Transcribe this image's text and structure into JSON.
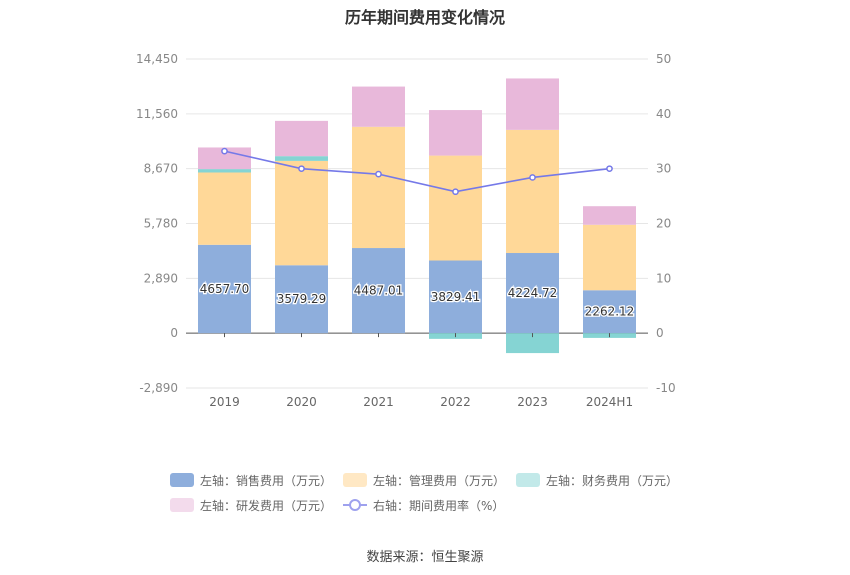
{
  "title": "历年期间费用变化情况",
  "source": "数据来源：恒生聚源",
  "chart_data": {
    "type": "bar",
    "stacked": true,
    "categories": [
      "2019",
      "2020",
      "2021",
      "2022",
      "2023",
      "2024H1"
    ],
    "left_axis": {
      "min": -2890,
      "max": 14450,
      "ticks": [
        "14,450",
        "11,560",
        "8,670",
        "5,780",
        "2,890",
        "0",
        "-2,890"
      ]
    },
    "right_axis": {
      "min": -10,
      "max": 50,
      "ticks": [
        "50",
        "40",
        "30",
        "20",
        "10",
        "0",
        "-10"
      ]
    },
    "series": [
      {
        "name": "左轴：销售费用（万元）",
        "color": "#8eaedc",
        "values": [
          4657.7,
          3579.29,
          4487.01,
          3829.41,
          4224.72,
          2262.12
        ],
        "labels": [
          "4657.70",
          "3579.29",
          "4487.01",
          "3829.41",
          "4224.72",
          "2262.12"
        ]
      },
      {
        "name": "左轴：管理费用（万元）",
        "color": "#ffd898",
        "values": [
          3810,
          5500,
          6390,
          5530,
          6490,
          3450
        ]
      },
      {
        "name": "左轴：财务费用（万元）",
        "color": "#85d4d3",
        "values": [
          180,
          250,
          0,
          -300,
          -1050,
          -250
        ]
      },
      {
        "name": "左轴：研发费用（万元）",
        "color": "#e8b8da",
        "values": [
          1140,
          1860,
          2120,
          2400,
          2710,
          980
        ]
      }
    ],
    "line": {
      "name": "右轴：期间费用率（%）",
      "color": "#7579e8",
      "values": [
        33.2,
        30.0,
        29.0,
        25.8,
        28.4,
        30.0
      ]
    },
    "grid": true,
    "legend_position": "bottom"
  }
}
